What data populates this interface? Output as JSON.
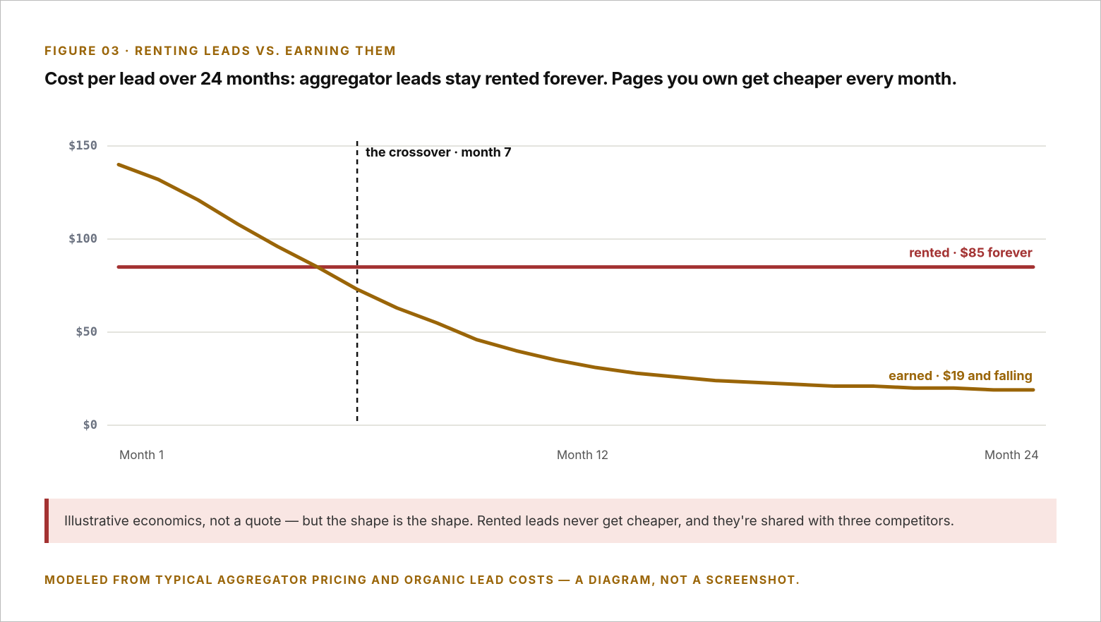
{
  "kicker": "FIGURE 03 · RENTING LEADS VS. EARNING THEM",
  "note": "Illustrative economics, not a quote — but the shape is the shape. Rented leads never get cheaper, and they're shared with three competitors.",
  "footer": "MODELED FROM TYPICAL AGGREGATOR PRICING AND ORGANIC LEAD COSTS — A DIAGRAM, NOT A SCREENSHOT.",
  "chart_data": {
    "type": "line",
    "title": "Cost per lead over 24 months: aggregator leads stay rented forever. Pages you own get cheaper every month.",
    "categories": [
      "Month 1",
      null,
      null,
      null,
      null,
      null,
      null,
      null,
      null,
      null,
      null,
      "Month 12",
      null,
      null,
      null,
      null,
      null,
      null,
      null,
      null,
      null,
      null,
      null,
      "Month 24"
    ],
    "series": [
      {
        "name": "rented · $85 forever",
        "color": "#a33232",
        "values": [
          85,
          85,
          85,
          85,
          85,
          85,
          85,
          85,
          85,
          85,
          85,
          85,
          85,
          85,
          85,
          85,
          85,
          85,
          85,
          85,
          85,
          85,
          85,
          85
        ]
      },
      {
        "name": "earned · $19 and falling",
        "color": "#9a6508",
        "values": [
          140,
          132,
          121,
          108,
          96,
          85,
          73,
          63,
          55,
          46,
          40,
          35,
          31,
          28,
          26,
          24,
          23,
          22,
          21,
          21,
          20,
          20,
          19,
          19
        ]
      }
    ],
    "ylim": [
      0,
      150
    ],
    "yticks": [
      {
        "value": 0,
        "label": "$0"
      },
      {
        "value": 50,
        "label": "$50"
      },
      {
        "value": 100,
        "label": "$100"
      },
      {
        "value": 150,
        "label": "$150"
      }
    ],
    "grid": true,
    "crossover_month": 7,
    "crossover_label": "the crossover · month 7"
  }
}
